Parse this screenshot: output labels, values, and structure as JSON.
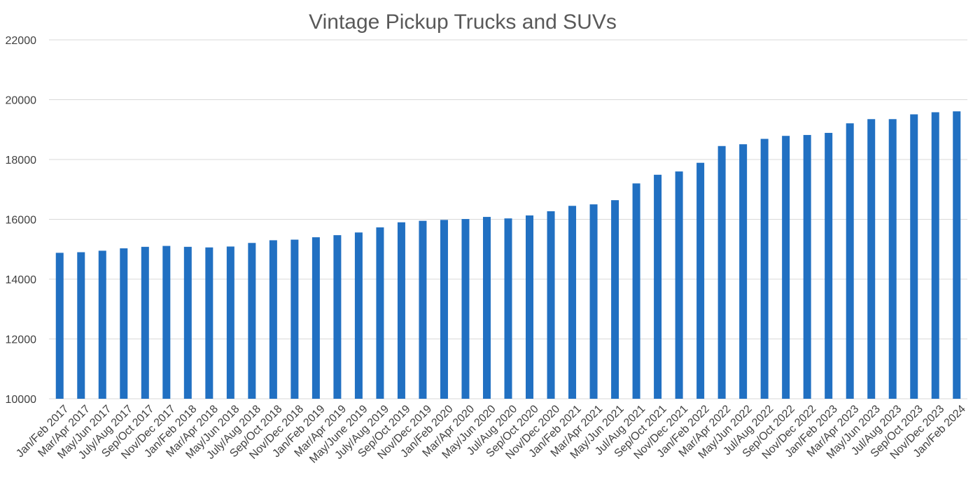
{
  "chart_data": {
    "type": "bar",
    "title": "Vintage Pickup Trucks and SUVs",
    "xlabel": "",
    "ylabel": "",
    "ylim": [
      10000,
      22000
    ],
    "yticks": [
      10000,
      12000,
      14000,
      16000,
      18000,
      20000,
      22000
    ],
    "grid": true,
    "legend": "none",
    "bar_color": "#2170C2",
    "categories": [
      "Jan/Feb 2017",
      "Mar/Apr 2017",
      "May/Jun 2017",
      "July/Aug 2017",
      "Sep/Oct 2017",
      "Nov/Dec 2017",
      "Jan/Feb 2018",
      "Mar/Apr 2018",
      "May/Jun 2018",
      "July/Aug 2018",
      "Sep/Oct 2018",
      "Nov/Dec 2018",
      "Jan/Feb 2019",
      "Mar/Apr 2019",
      "May/June 2019",
      "July/Aug 2019",
      "Sep/Oct 2019",
      "Nov/Dec 2019",
      "Jan/Feb 2020",
      "Mar/Apr 2020",
      "May/Jun 2020",
      "Jul/Aug 2020",
      "Sep/Oct 2020",
      "Nov/Dec 2020",
      "Jan/Feb 2021",
      "Mar/Apr 2021",
      "May/Jun 2021",
      "Jul/Aug 2021",
      "Sep/Oct 2021",
      "Nov/Dec 2021",
      "Jan/Feb 2022",
      "Mar/Apr 2022",
      "May/Jun 2022",
      "Jul/Aug 2022",
      "Sep/Oct 2022",
      "Nov/Dec 2022",
      "Jan/Feb 2023",
      "Mar/Apr 2023",
      "May/Jun 2023",
      "Jul/Aug 2023",
      "Sep/Oct 2023",
      "Nov/Dec 2023",
      "Jan/Feb 2024"
    ],
    "values": [
      14880,
      14900,
      14950,
      15030,
      15080,
      15110,
      15080,
      15060,
      15090,
      15210,
      15300,
      15320,
      15400,
      15470,
      15560,
      15730,
      15900,
      15950,
      15980,
      16010,
      16080,
      16030,
      16130,
      16270,
      16450,
      16500,
      16640,
      17200,
      17490,
      17600,
      17890,
      18450,
      18510,
      18690,
      18790,
      18820,
      18890,
      19210,
      19350,
      19350,
      19510,
      19580,
      19610
    ]
  }
}
